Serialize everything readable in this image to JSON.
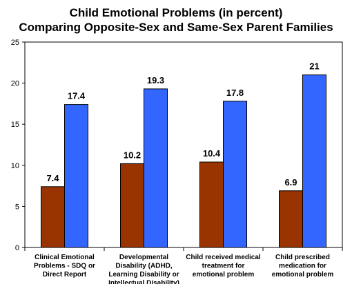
{
  "chart_data": {
    "type": "bar",
    "title": "Child Emotional Problems (in percent)",
    "subtitle": "Comparing Opposite-Sex and Same-Sex Parent Families",
    "categories": [
      [
        "Clinical Emotional",
        "Problems - SDQ or",
        "Direct Report"
      ],
      [
        "Developmental",
        "Disability (ADHD,",
        "Learning Disability or",
        "Intellectual Disability)"
      ],
      [
        "Child received medical",
        "treatment for",
        "emotional problem"
      ],
      [
        "Child prescribed",
        "medication for",
        "emotional problem"
      ]
    ],
    "series": [
      {
        "values": [
          7.4,
          10.2,
          10.4,
          6.9
        ],
        "color": "#993300"
      },
      {
        "values": [
          17.4,
          19.3,
          17.8,
          21
        ],
        "color": "#3366ff"
      }
    ],
    "ylim": [
      0,
      25
    ],
    "yticks": [
      0,
      5,
      10,
      15,
      20,
      25
    ],
    "xlabel": "",
    "ylabel": "",
    "grid": false,
    "legend": "none"
  }
}
